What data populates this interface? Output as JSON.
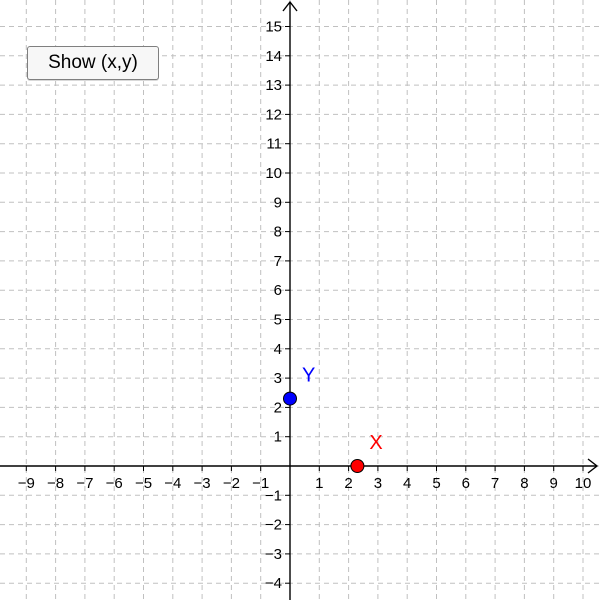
{
  "button": {
    "label": "Show (x,y)"
  },
  "graph": {
    "x_range": [
      -10,
      10
    ],
    "y_range": [
      -4,
      15
    ],
    "x_ticks": [
      "−9",
      "−8",
      "−7",
      "−6",
      "−5",
      "−4",
      "−3",
      "−2",
      "−1",
      "1",
      "2",
      "3",
      "4",
      "5",
      "6",
      "7",
      "8",
      "9",
      "10"
    ],
    "x_tick_values": [
      -9,
      -8,
      -7,
      -6,
      -5,
      -4,
      -3,
      -2,
      -1,
      1,
      2,
      3,
      4,
      5,
      6,
      7,
      8,
      9,
      10
    ],
    "y_ticks": [
      "−4",
      "−3",
      "−2",
      "−1",
      "1",
      "2",
      "3",
      "4",
      "5",
      "6",
      "7",
      "8",
      "9",
      "10",
      "11",
      "12",
      "13",
      "14",
      "15"
    ],
    "y_tick_values": [
      -4,
      -3,
      -2,
      -1,
      1,
      2,
      3,
      4,
      5,
      6,
      7,
      8,
      9,
      10,
      11,
      12,
      13,
      14,
      15
    ],
    "grid": true,
    "points": [
      {
        "label": "Y",
        "x": 0,
        "y": 2.3,
        "color": "#0000ff"
      },
      {
        "label": "X",
        "x": 2.3,
        "y": 0,
        "color": "#ff0000"
      }
    ]
  }
}
